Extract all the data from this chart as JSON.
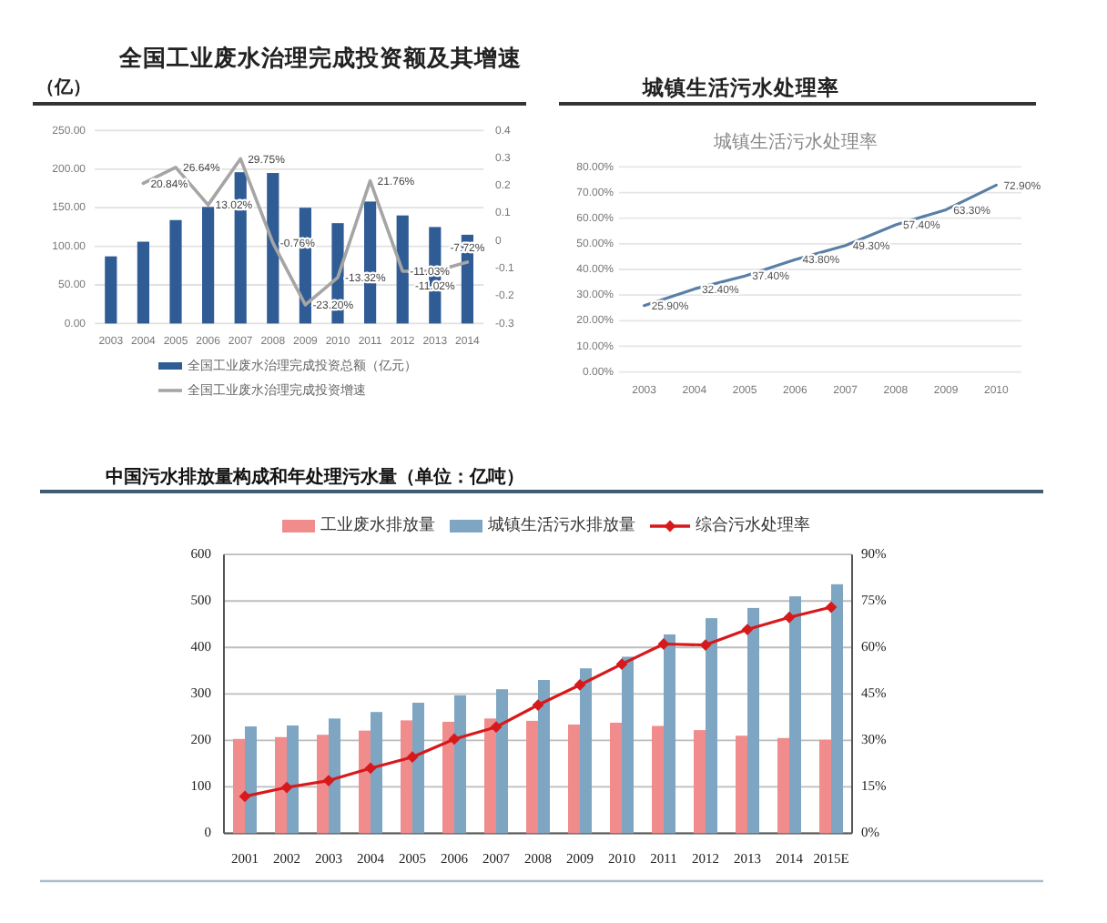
{
  "chart_data": [
    {
      "type": "bar",
      "title": "全国工业废水治理完成投资额及其增速",
      "ylabel": "（亿）",
      "categories": [
        "2003",
        "2004",
        "2005",
        "2006",
        "2007",
        "2008",
        "2009",
        "2010",
        "2011",
        "2012",
        "2013",
        "2014"
      ],
      "series": [
        {
          "name": "全国工业废水治理完成投资总额（亿元）",
          "color": "#2f5c95",
          "values": [
            87,
            106,
            134,
            151,
            196,
            195,
            150,
            130,
            158,
            140,
            125,
            115
          ]
        },
        {
          "name": "全国工业废水治理完成投资增速",
          "type": "line",
          "axis": "y2",
          "color": "#a5a5a5",
          "values": [
            null,
            0.2084,
            0.2664,
            0.1302,
            0.2975,
            -0.0076,
            -0.232,
            -0.1332,
            0.2176,
            -0.1103,
            -0.1102,
            -0.0772
          ],
          "value_labels": [
            null,
            "20.84%",
            "26.64%",
            "13.02%",
            "29.75%",
            "-0.76%",
            "-23.20%",
            "-13.32%",
            "21.76%",
            "-11.03%",
            "-11.02%",
            "-7.72%"
          ]
        }
      ],
      "ylim": [
        0,
        250
      ],
      "yticks": [
        {
          "value": 0,
          "label": "0.00"
        },
        {
          "value": 50,
          "label": "50.00"
        },
        {
          "value": 100,
          "label": "100.00"
        },
        {
          "value": 150,
          "label": "150.00"
        },
        {
          "value": 200,
          "label": "200.00"
        },
        {
          "value": 250,
          "label": "250.00"
        }
      ],
      "y2lim": [
        -0.3,
        0.4
      ],
      "y2ticks": [
        -0.3,
        -0.2,
        -0.1,
        0,
        0.1,
        0.2,
        0.3,
        0.4
      ],
      "grid": "y",
      "legend": "bottom"
    },
    {
      "type": "line",
      "title": "城镇生活污水处理率",
      "subtitle": "城镇生活污水处理率",
      "categories": [
        "2003",
        "2004",
        "2005",
        "2006",
        "2007",
        "2008",
        "2009",
        "2010"
      ],
      "values": [
        25.9,
        32.4,
        37.4,
        43.8,
        49.3,
        57.4,
        63.3,
        72.9
      ],
      "color": "#5a7fa6",
      "value_labels": [
        "25.90%",
        "32.40%",
        "37.40%",
        "43.80%",
        "49.30%",
        "57.40%",
        "63.30%",
        "72.90%"
      ],
      "ylim": [
        0,
        80
      ],
      "yticks": [
        {
          "value": 0,
          "label": "0.00%"
        },
        {
          "value": 10,
          "label": "10.00%"
        },
        {
          "value": 20,
          "label": "20.00%"
        },
        {
          "value": 30,
          "label": "30.00%"
        },
        {
          "value": 40,
          "label": "40.00%"
        },
        {
          "value": 50,
          "label": "50.00%"
        },
        {
          "value": 60,
          "label": "60.00%"
        },
        {
          "value": 70,
          "label": "70.00%"
        },
        {
          "value": 80,
          "label": "80.00%"
        }
      ],
      "grid": "y"
    },
    {
      "type": "bar",
      "title": "中国污水排放量构成和年处理污水量（单位：亿吨）",
      "categories": [
        "2001",
        "2002",
        "2003",
        "2004",
        "2005",
        "2006",
        "2007",
        "2008",
        "2009",
        "2010",
        "2011",
        "2012",
        "2013",
        "2014",
        "2015E"
      ],
      "series": [
        {
          "name": "工业废水排放量",
          "color": "#f08c8c",
          "values": [
            203,
            207,
            212,
            221,
            243,
            240,
            247,
            242,
            234,
            238,
            231,
            222,
            210,
            205,
            201
          ]
        },
        {
          "name": "城镇生活污水排放量",
          "color": "#7ea6c2",
          "values": [
            230,
            232,
            247,
            261,
            281,
            297,
            310,
            330,
            355,
            380,
            428,
            463,
            485,
            510,
            536
          ]
        },
        {
          "name": "综合污水处理率",
          "type": "line",
          "axis": "y2",
          "color": "#d7191c",
          "values": [
            11.9,
            14.8,
            17.0,
            21.0,
            24.6,
            30.4,
            34.3,
            41.4,
            47.9,
            54.6,
            61.1,
            60.8,
            65.8,
            69.7,
            73.0
          ]
        }
      ],
      "ylim": [
        0,
        600
      ],
      "yticks": [
        0,
        100,
        200,
        300,
        400,
        500,
        600
      ],
      "y2lim": [
        0,
        90
      ],
      "y2ticks": [
        {
          "value": 0,
          "label": "0%"
        },
        {
          "value": 15,
          "label": "15%"
        },
        {
          "value": 30,
          "label": "30%"
        },
        {
          "value": 45,
          "label": "45%"
        },
        {
          "value": 60,
          "label": "60%"
        },
        {
          "value": 75,
          "label": "75%"
        },
        {
          "value": 90,
          "label": "90%"
        }
      ],
      "grid": "y",
      "legend": "top",
      "marker": "diamond"
    }
  ]
}
